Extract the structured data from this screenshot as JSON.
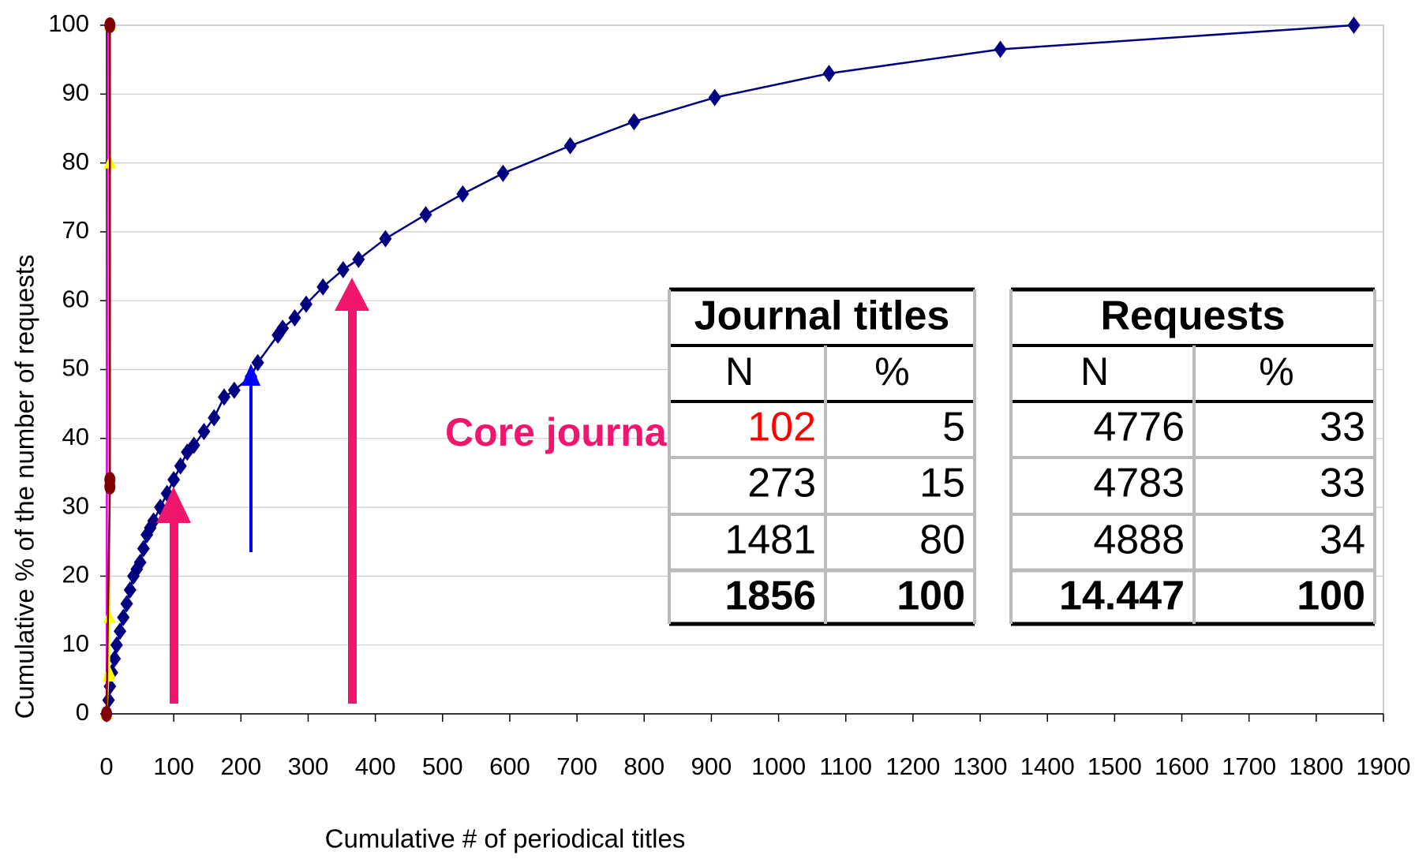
{
  "chart_data": {
    "type": "line",
    "xlabel": "Cumulative # of periodical titles",
    "ylabel": "Cumulative % of the number of requests",
    "annotations": [
      "Core journals"
    ],
    "xlim": [
      0,
      1900
    ],
    "xticks": [
      0,
      100,
      200,
      300,
      400,
      500,
      600,
      700,
      800,
      900,
      1000,
      1100,
      1200,
      1300,
      1400,
      1500,
      1600,
      1700,
      1800,
      1900
    ],
    "ylim": [
      0,
      100
    ],
    "yticks": [
      0,
      10,
      20,
      30,
      40,
      50,
      60,
      70,
      80,
      90,
      100
    ],
    "grid": true,
    "series": [
      {
        "color": "#000080",
        "marker": "diamond",
        "x": [
          0,
          3,
          5,
          8,
          12,
          15,
          20,
          25,
          30,
          35,
          40,
          45,
          50,
          55,
          60,
          65,
          70,
          80,
          90,
          100,
          110,
          120,
          130,
          145,
          160,
          175,
          190,
          215,
          225,
          255,
          262,
          280,
          297,
          322,
          352,
          375,
          415,
          475,
          530,
          590,
          690,
          785,
          905,
          1075,
          1330,
          1856
        ],
        "values": [
          0,
          2,
          4,
          6,
          8,
          10,
          12,
          14,
          16,
          18,
          20,
          21,
          22,
          24,
          26,
          27,
          28,
          30,
          32,
          34,
          36,
          38,
          39,
          41,
          43,
          46,
          47,
          49,
          51,
          55,
          56,
          57.5,
          59.5,
          62,
          64.5,
          66,
          69,
          72.5,
          75.5,
          78.5,
          82.5,
          86,
          89.5,
          93,
          96.5,
          100
        ]
      },
      {
        "color": "#ff00ff",
        "marker": "none",
        "x": [
          0,
          2
        ],
        "values": [
          0,
          100
        ]
      },
      {
        "color": "#ffff00",
        "marker": "triangle",
        "x": [
          0,
          3,
          4,
          4,
          5,
          5
        ],
        "values": [
          0,
          5.5,
          6,
          14,
          80,
          100
        ]
      },
      {
        "color": "#800000",
        "marker": "circle",
        "x": [
          0,
          5,
          5,
          5
        ],
        "values": [
          0,
          33,
          34,
          100
        ]
      }
    ]
  },
  "table": {
    "headers": [
      "Journal titles",
      "Requests"
    ],
    "subheaders": [
      "N",
      "%",
      "N",
      "%"
    ],
    "rows": [
      [
        "102",
        "5",
        "4776",
        "33"
      ],
      [
        "273",
        "15",
        "4783",
        "33"
      ],
      [
        "1481",
        "80",
        "4888",
        "34"
      ],
      [
        "1856",
        "100",
        "14.447",
        "100"
      ]
    ]
  }
}
